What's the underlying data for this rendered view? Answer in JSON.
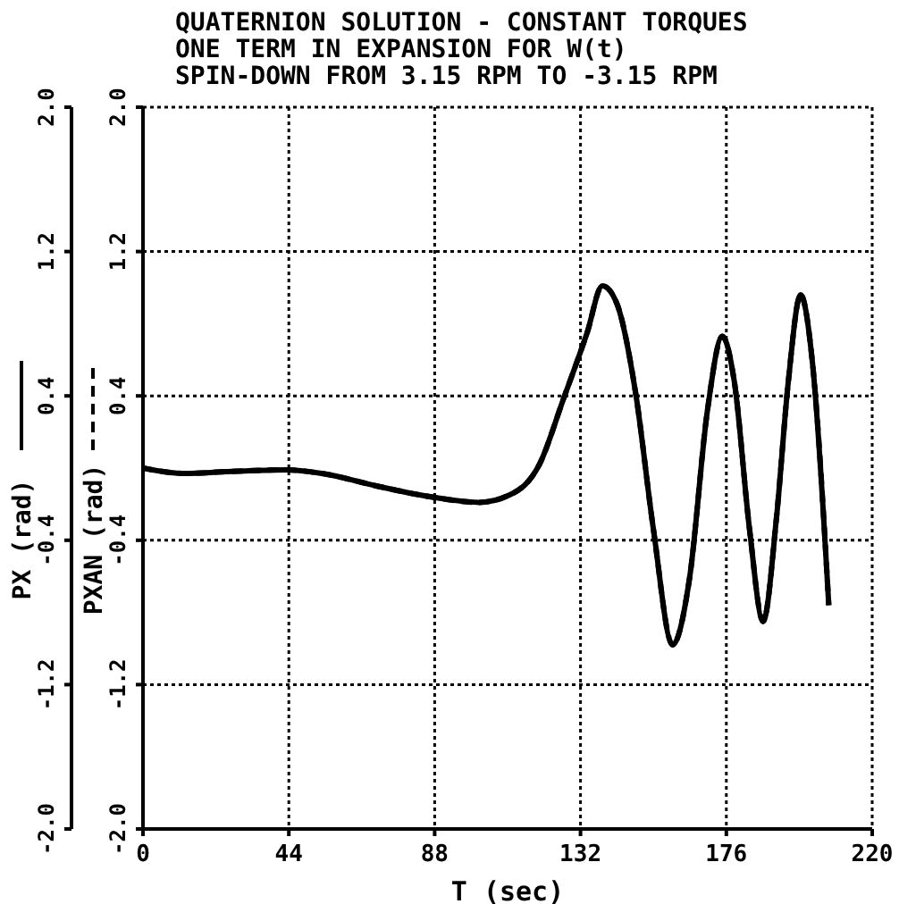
{
  "chart_data": {
    "type": "line",
    "title": "QUATERNION SOLUTION - CONSTANT TORQUES",
    "subtitle": "ONE TERM IN EXPANSION FOR W(t)\nSPIN-DOWN FROM 3.15 RPM TO -3.15 RPM",
    "xlabel": "T (sec)",
    "ylabel": "PX (rad)",
    "y2label": "PXAN (rad)",
    "x": [
      0,
      12.7,
      25,
      43.5,
      54,
      70.7,
      87,
      101.4,
      110.5,
      119.6,
      126.8,
      134,
      138.6,
      143,
      148.6,
      154,
      159.8,
      164.9,
      170.3,
      174.8,
      178.4,
      183,
      187.1,
      191.1,
      194.7,
      198.4,
      202,
      206.9
    ],
    "series": [
      {
        "color": "#000000",
        "line_style": "solid",
        "values": [
          0,
          -0.03,
          -0.02,
          -0.01,
          -0.03,
          -0.1,
          -0.16,
          -0.19,
          -0.15,
          0.02,
          0.38,
          0.75,
          1.01,
          0.91,
          0.42,
          -0.34,
          -0.98,
          -0.61,
          0.32,
          0.73,
          0.48,
          -0.34,
          -0.85,
          -0.28,
          0.48,
          0.96,
          0.58,
          -0.76
        ]
      },
      {
        "color": "#000000",
        "line_style": "dashed",
        "axis": "y2",
        "values": [
          0,
          -0.03,
          -0.02,
          -0.01,
          -0.03,
          -0.1,
          -0.16,
          -0.19,
          -0.15,
          0.02,
          0.38,
          0.75,
          1.01,
          0.91,
          0.42,
          -0.34,
          -0.98,
          -0.61,
          0.32,
          0.73,
          0.48,
          -0.34,
          -0.85,
          -0.28,
          0.48,
          0.96,
          0.58,
          -0.76
        ]
      }
    ],
    "xlim": [
      0,
      220
    ],
    "xticks": [
      0,
      44,
      88,
      132,
      176,
      220
    ],
    "ylim": [
      -2.0,
      2.0
    ],
    "yticks": [
      {
        "value": -2,
        "label": "-2.0"
      },
      {
        "value": -1.2,
        "label": "-1.2"
      },
      {
        "value": -0.4,
        "label": "-0.4"
      },
      {
        "value": 0.4,
        "label": "0.4"
      },
      {
        "value": 1.2,
        "label": "1.2"
      },
      {
        "value": 2,
        "label": "2.0"
      }
    ],
    "y2lim": [
      -2.0,
      2.0
    ],
    "y2ticks": [
      {
        "value": -2,
        "label": "-2.0"
      },
      {
        "value": -1.2,
        "label": "-1.2"
      },
      {
        "value": -0.4,
        "label": "-0.4"
      },
      {
        "value": 0.4,
        "label": "0.4"
      },
      {
        "value": 1.2,
        "label": "1.2"
      },
      {
        "value": 2,
        "label": "2.0"
      }
    ],
    "grid": true,
    "marker": "none",
    "legend": false
  }
}
